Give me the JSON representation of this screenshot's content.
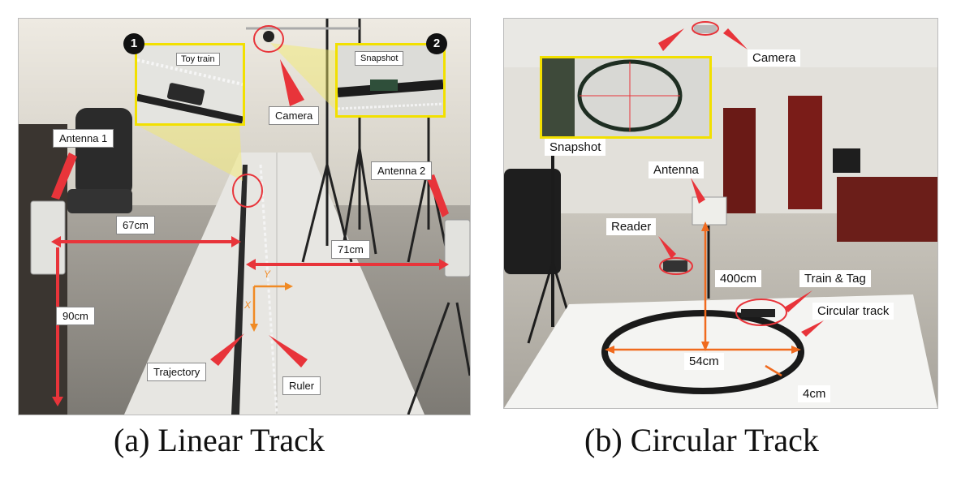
{
  "panel_a": {
    "caption": "(a) Linear Track",
    "badge_1": "1",
    "badge_2": "2",
    "labels": {
      "toy_train": "Toy train",
      "snapshot": "Snapshot",
      "camera": "Camera",
      "antenna_1": "Antenna 1",
      "antenna_2": "Antenna 2",
      "dist_67": "67cm",
      "dist_71": "71cm",
      "dist_90": "90cm",
      "trajectory": "Trajectory",
      "ruler": "Ruler",
      "axis_y": "Y",
      "axis_x": "X"
    }
  },
  "panel_b": {
    "caption": "(b) Circular Track",
    "labels": {
      "camera": "Camera",
      "snapshot": "Snapshot",
      "antenna": "Antenna",
      "reader": "Reader",
      "dist_400": "400cm",
      "train_tag": "Train & Tag",
      "circular_track": "Circular track",
      "dist_54": "54cm",
      "dist_4": "4cm"
    }
  },
  "colors": {
    "annotation_red": "#e8343a",
    "inset_yellow": "#f2e000",
    "axis_orange": "#f08a24",
    "measure_orange": "#f06a1e"
  }
}
